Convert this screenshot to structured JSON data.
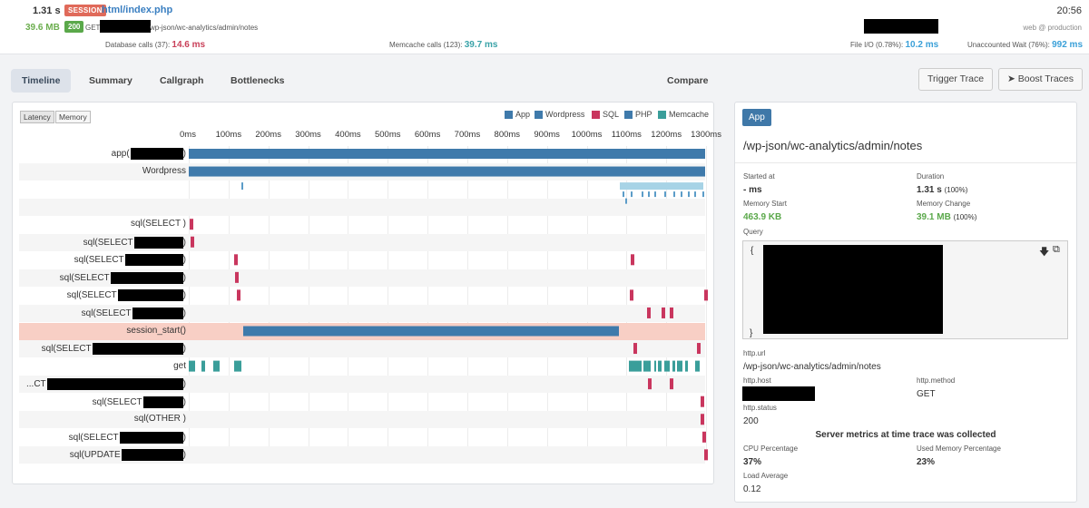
{
  "header": {
    "duration": "1.31 s",
    "session_badge": "SESSION",
    "file": "html/index.php",
    "memory": "39.6 MB",
    "status_badge": "200",
    "method": "GET",
    "path": "wp-json/wc-analytics/admin/notes",
    "clock": "20:56",
    "env": "web @ production",
    "metrics": {
      "db_label": "Database calls",
      "db_count": "37",
      "db_value": "14.6 ms",
      "memcache_label": "Memcache calls",
      "memcache_count": "123",
      "memcache_value": "39.7 ms",
      "fileio_label": "File I/O",
      "fileio_pct": "0.78%",
      "fileio_value": "10.2 ms",
      "wait_label": "Unaccounted Wait",
      "wait_pct": "76%",
      "wait_value": "992 ms"
    }
  },
  "tabs": [
    "Timeline",
    "Summary",
    "Callgraph",
    "Bottlenecks",
    "Compare"
  ],
  "buttons": {
    "trigger": "Trigger Trace",
    "boost": "Boost Traces"
  },
  "timeline": {
    "toggles": [
      "Latency",
      "Memory"
    ],
    "legend": [
      {
        "name": "App",
        "color": "#3f7aab"
      },
      {
        "name": "Wordpress",
        "color": "#3f7aab"
      },
      {
        "name": "SQL",
        "color": "#c9365e"
      },
      {
        "name": "PHP",
        "color": "#3f7aab"
      },
      {
        "name": "Memcache",
        "color": "#3a9e9a"
      }
    ],
    "ticks": [
      "0ms",
      "100ms",
      "200ms",
      "300ms",
      "400ms",
      "500ms",
      "600ms",
      "700ms",
      "800ms",
      "900ms",
      "1000ms",
      "1100ms",
      "1200ms",
      "1300ms"
    ],
    "rows": [
      {
        "label": "app(",
        "redacted": true
      },
      {
        "label": "Wordpress"
      },
      {
        "label": ""
      },
      {
        "label": ""
      },
      {
        "label": "sql(SELECT )"
      },
      {
        "label": "sql(SELECT",
        "redacted": true
      },
      {
        "label": "sql(SELECT",
        "redacted": true
      },
      {
        "label": "sql(SELECT",
        "redacted": true
      },
      {
        "label": "sql(SELECT",
        "redacted": true
      },
      {
        "label": "sql(SELECT",
        "redacted": true
      },
      {
        "label": "session_start()"
      },
      {
        "label": "sql(SELECT",
        "redacted": true
      },
      {
        "label": "get"
      },
      {
        "label": "...CT",
        "redacted": true
      },
      {
        "label": "sql(SELECT",
        "redacted": true
      },
      {
        "label": "sql(OTHER )"
      },
      {
        "label": "sql(SELECT",
        "redacted": true
      },
      {
        "label": "sql(UPDATE",
        "redacted": true
      }
    ]
  },
  "details": {
    "badge": "App",
    "path": "/wp-json/wc-analytics/admin/notes",
    "started_label": "Started at",
    "started_value": "- ms",
    "duration_label": "Duration",
    "duration_value": "1.31 s",
    "duration_pct": "(100%)",
    "mem_start_label": "Memory Start",
    "mem_start_value": "463.9 KB",
    "mem_change_label": "Memory Change",
    "mem_change_value": "39.1 MB",
    "mem_change_pct": "(100%)",
    "query_label": "Query",
    "query_open": "{",
    "query_close": "}",
    "url_label": "http.url",
    "url_value": "/wp-json/wc-analytics/admin/notes",
    "host_label": "http.host",
    "method_label": "http.method",
    "method_value": "GET",
    "status_label": "http.status",
    "status_value": "200",
    "server_heading": "Server metrics at time trace was collected",
    "cpu_label": "CPU Percentage",
    "cpu_value": "37%",
    "usedmem_label": "Used Memory Percentage",
    "usedmem_value": "23%",
    "load_label": "Load Average",
    "load_value": "0.12"
  }
}
